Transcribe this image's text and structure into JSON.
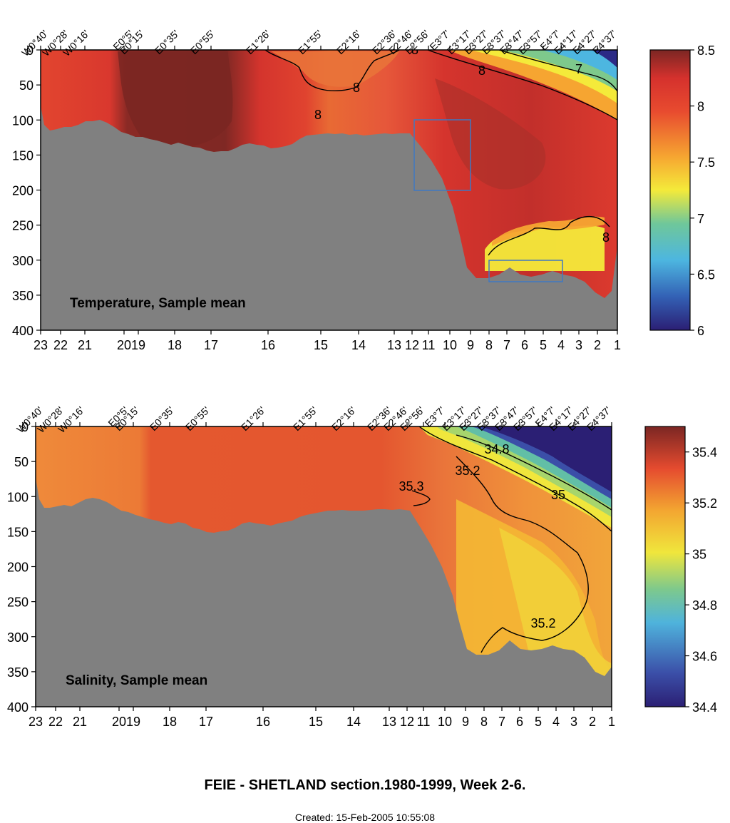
{
  "figure": {
    "title_part1": "FEIE - SHETLAND section.",
    "title_part2": "1980-1999, Week 2-6.",
    "created": "Created: 15-Feb-2005 10:55:08"
  },
  "chart_data": [
    {
      "type": "heatmap",
      "title": "Temperature, Sample mean",
      "x_stations": [
        "23",
        "22",
        "21",
        "20",
        "19",
        "18",
        "17",
        "16",
        "15",
        "14",
        "13",
        "12",
        "11",
        "10",
        "9",
        "8",
        "7",
        "6",
        "5",
        "4",
        "3",
        "2",
        "1"
      ],
      "top_longitudes": [
        "W0°40'",
        "W0°28'",
        "W0°16'",
        "E0°5'",
        "E0°15'",
        "E0°35'",
        "E0°55'",
        "E1°26'",
        "E1°55'",
        "E2°16'",
        "E2°36'",
        "E2°46'",
        "E2°56'",
        "E3°7'",
        "E3°17'",
        "E3°27'",
        "E3°37'",
        "E3°47'",
        "E3°57'",
        "E4°7'",
        "E4°17'",
        "E4°27'",
        "E4°37'"
      ],
      "y_ticks": [
        0,
        50,
        100,
        150,
        200,
        250,
        300,
        350,
        400
      ],
      "ylim": [
        400,
        0
      ],
      "ylabel": "",
      "xlabel": "",
      "colorbar": {
        "min": 6,
        "max": 8.5,
        "ticks": [
          "6",
          "6.5",
          "7",
          "7.5",
          "8",
          "8.5"
        ]
      },
      "contour_labels": [
        "8",
        "8",
        "8",
        "8",
        "7",
        "8"
      ],
      "grid": false
    },
    {
      "type": "heatmap",
      "title": "Salinity, Sample mean",
      "x_stations": [
        "23",
        "22",
        "21",
        "20",
        "19",
        "18",
        "17",
        "16",
        "15",
        "14",
        "13",
        "12",
        "11",
        "10",
        "9",
        "8",
        "7",
        "6",
        "5",
        "4",
        "3",
        "2",
        "1"
      ],
      "top_longitudes": [
        "W0°40'",
        "W0°28'",
        "W0°16'",
        "E0°5'",
        "E0°15'",
        "E0°35'",
        "E0°55'",
        "E1°26'",
        "E1°55'",
        "E2°16'",
        "E2°36'",
        "E2°46'",
        "E2°56'",
        "E3°7'",
        "E3°17'",
        "E3°27'",
        "E3°37'",
        "E3°47'",
        "E3°57'",
        "E4°7'",
        "E4°17'",
        "E4°27'",
        "E4°37'"
      ],
      "y_ticks": [
        0,
        50,
        100,
        150,
        200,
        250,
        300,
        350,
        400
      ],
      "ylim": [
        400,
        0
      ],
      "ylabel": "",
      "xlabel": "",
      "colorbar": {
        "min": 34.4,
        "max": 35.5,
        "ticks": [
          "34.4",
          "34.6",
          "34.8",
          "35",
          "35.2",
          "35.4"
        ]
      },
      "contour_labels": [
        "34.8",
        "35.2",
        "35.3",
        "35",
        "35.2"
      ],
      "grid": false
    }
  ],
  "colors": {
    "seabed": "#808080",
    "frame": "#000000"
  }
}
